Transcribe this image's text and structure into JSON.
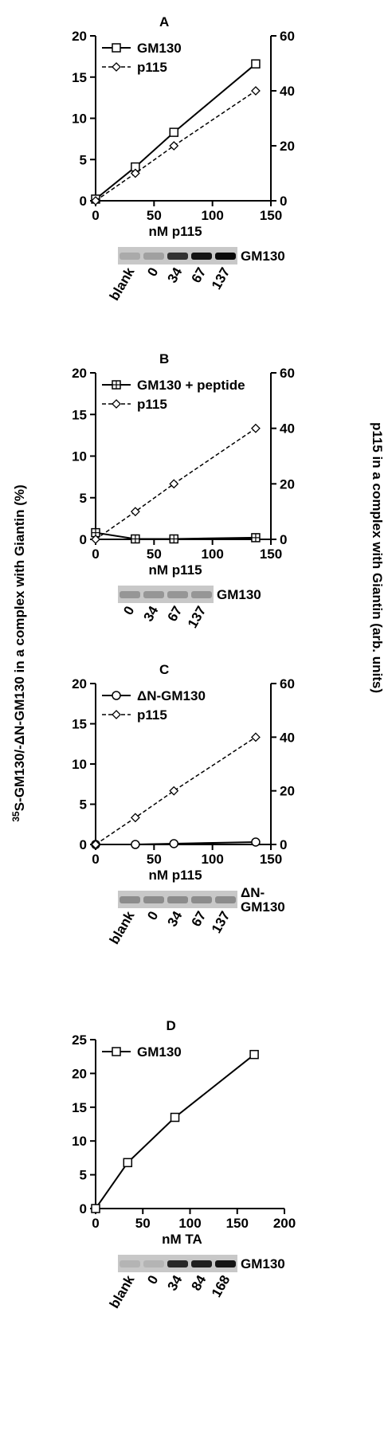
{
  "shared_labels": {
    "y_left": {
      "superscript": "35",
      "text": "S-GM130/-ΔN-GM130 in a complex with Giantin (%)"
    },
    "y_right": "p115 in a complex with Giantin (arb. units)"
  },
  "chart_data": [
    {
      "type": "line",
      "panel": "A",
      "x_label": "nM p115",
      "xlim": [
        0,
        150
      ],
      "xticks": [
        0,
        50,
        100,
        150
      ],
      "ylim": [
        0,
        20
      ],
      "yticks": [
        0,
        5,
        10,
        15,
        20
      ],
      "y2lim": [
        0,
        60
      ],
      "y2ticks": [
        0,
        20,
        40,
        60
      ],
      "x": [
        0,
        34,
        67,
        137
      ],
      "series": [
        {
          "name": "GM130",
          "color": "#000000",
          "marker": "square",
          "dashed": false,
          "values": [
            0.2,
            4.1,
            8.3,
            16.6
          ]
        },
        {
          "name": "p115",
          "color": "#000000",
          "marker": "diamond",
          "dashed": true,
          "axis": "y2",
          "values": [
            0,
            10,
            20,
            40
          ]
        }
      ],
      "gel": {
        "lanes": [
          "blank",
          "0",
          "34",
          "67",
          "137"
        ],
        "label": [
          "GM130"
        ]
      }
    },
    {
      "type": "line",
      "panel": "B",
      "x_label": "nM p115",
      "xlim": [
        0,
        150
      ],
      "xticks": [
        0,
        50,
        100,
        150
      ],
      "ylim": [
        0,
        20
      ],
      "yticks": [
        0,
        5,
        10,
        15,
        20
      ],
      "y2lim": [
        0,
        60
      ],
      "y2ticks": [
        0,
        20,
        40,
        60
      ],
      "x": [
        0,
        34,
        67,
        137
      ],
      "series": [
        {
          "name": "GM130 + peptide",
          "color": "#000000",
          "marker": "crossed-square",
          "dashed": false,
          "values": [
            0.8,
            0.05,
            0.05,
            0.2
          ]
        },
        {
          "name": "p115",
          "color": "#000000",
          "marker": "diamond",
          "dashed": true,
          "axis": "y2",
          "values": [
            0,
            10,
            20,
            40
          ]
        }
      ],
      "gel": {
        "lanes": [
          "0",
          "34",
          "67",
          "137"
        ],
        "label": [
          "GM130"
        ]
      }
    },
    {
      "type": "line",
      "panel": "C",
      "x_label": "nM p115",
      "xlim": [
        0,
        150
      ],
      "xticks": [
        0,
        50,
        100,
        150
      ],
      "ylim": [
        0,
        20
      ],
      "yticks": [
        0,
        5,
        10,
        15,
        20
      ],
      "y2lim": [
        0,
        60
      ],
      "y2ticks": [
        0,
        20,
        40,
        60
      ],
      "x": [
        0,
        34,
        67,
        137
      ],
      "series": [
        {
          "name": "ΔN-GM130",
          "color": "#000000",
          "marker": "circle",
          "dashed": false,
          "values": [
            0,
            0,
            0.1,
            0.3
          ]
        },
        {
          "name": "p115",
          "color": "#000000",
          "marker": "diamond",
          "dashed": true,
          "axis": "y2",
          "values": [
            0,
            10,
            20,
            40
          ]
        }
      ],
      "gel": {
        "lanes": [
          "blank",
          "0",
          "34",
          "67",
          "137"
        ],
        "label": [
          "ΔN-",
          "GM130"
        ]
      }
    },
    {
      "type": "line",
      "panel": "D",
      "x_label": "nM TA",
      "xlim": [
        0,
        200
      ],
      "xticks": [
        0,
        50,
        100,
        150,
        200
      ],
      "ylim": [
        0,
        25
      ],
      "yticks": [
        0,
        5,
        10,
        15,
        20,
        25
      ],
      "x": [
        0,
        34,
        84,
        168
      ],
      "series": [
        {
          "name": "GM130",
          "color": "#000000",
          "marker": "square",
          "dashed": false,
          "values": [
            0,
            6.8,
            13.5,
            22.8
          ]
        }
      ],
      "gel": {
        "lanes": [
          "blank",
          "0",
          "34",
          "84",
          "168"
        ],
        "label": [
          "GM130"
        ]
      }
    }
  ]
}
